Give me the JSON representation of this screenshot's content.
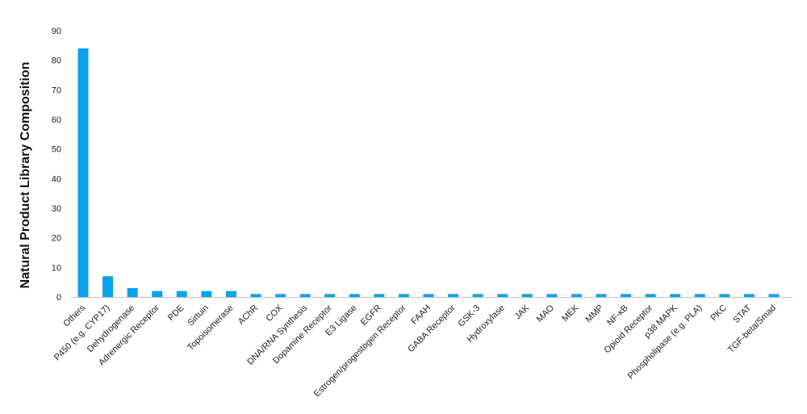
{
  "chart_data": {
    "type": "bar",
    "title": "",
    "xlabel": "",
    "ylabel": "Natural Product Library Composition",
    "ylim": [
      0,
      90
    ],
    "yticks": [
      0,
      10,
      20,
      30,
      40,
      50,
      60,
      70,
      80,
      90
    ],
    "grid": false,
    "legend": "none",
    "bar_color": "#0aa2e8",
    "axis_color": "#bfbfbf",
    "categories": [
      "Others",
      "P450 (e.g. CYP17)",
      "Dehydrogenase",
      "Adrenergic Receptor",
      "PDE",
      "Sirtuin",
      "Topoisomerase",
      "AChR",
      "COX",
      "DNA/RNA Synthesis",
      "Dopamine Receptor",
      "E3 Ligase",
      "EGFR",
      "Estrogen/progestogen Receptor",
      "FAAH",
      "GABA Receptor",
      "GSK-3",
      "Hydroxylase",
      "JAK",
      "MAO",
      "MEK",
      "MMP",
      "NF-κB",
      "Opioid Receptor",
      "p38 MAPK",
      "Phospholipase (e.g. PLA)",
      "PKC",
      "STAT",
      "TGF-beta/Smad"
    ],
    "values": [
      84,
      7,
      3,
      2,
      2,
      2,
      2,
      1,
      1,
      1,
      1,
      1,
      1,
      1,
      1,
      1,
      1,
      1,
      1,
      1,
      1,
      1,
      1,
      1,
      1,
      1,
      1,
      1,
      1
    ]
  }
}
